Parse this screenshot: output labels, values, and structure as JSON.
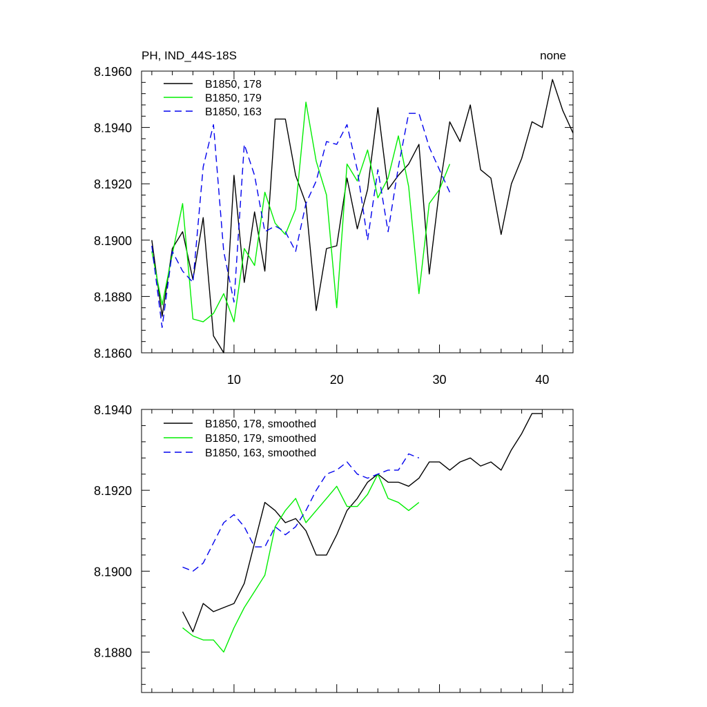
{
  "chart_data": [
    {
      "type": "line",
      "title": "PH, IND_44S-18S",
      "right_title": "none",
      "xlim": [
        1,
        43
      ],
      "ylim": [
        8.186,
        8.196
      ],
      "x_ticks": [
        10,
        20,
        30,
        40
      ],
      "x_tick_labels": [
        "10",
        "20",
        "30",
        "40"
      ],
      "y_ticks": [
        8.186,
        8.188,
        8.19,
        8.192,
        8.194,
        8.196
      ],
      "y_tick_labels": [
        "8.1860",
        "8.1880",
        "8.1900",
        "8.1920",
        "8.1940",
        "8.1960"
      ],
      "legend_position": "top-left",
      "series": [
        {
          "name": "B1850, 178",
          "color": "#000000",
          "dash": "solid",
          "x": [
            2,
            3,
            4,
            5,
            6,
            7,
            8,
            9,
            10,
            11,
            12,
            13,
            14,
            15,
            16,
            17,
            18,
            19,
            20,
            21,
            22,
            23,
            24,
            25,
            26,
            27,
            28,
            29,
            30,
            31,
            32,
            33,
            34,
            35,
            36,
            37,
            38,
            39,
            40,
            41,
            42,
            43
          ],
          "values": [
            8.19,
            8.1873,
            8.1897,
            8.1903,
            8.1886,
            8.1908,
            8.1866,
            8.186,
            8.1923,
            8.1885,
            8.191,
            8.1889,
            8.1943,
            8.1943,
            8.1923,
            8.1913,
            8.1875,
            8.1897,
            8.1898,
            8.1922,
            8.1904,
            8.1918,
            8.1947,
            8.1918,
            8.1923,
            8.1927,
            8.1934,
            8.1888,
            8.1918,
            8.1942,
            8.1935,
            8.1948,
            8.1925,
            8.1922,
            8.1902,
            8.192,
            8.1929,
            8.1942,
            8.194,
            8.1957,
            8.1946,
            8.1938
          ]
        },
        {
          "name": "B1850, 179",
          "color": "#00ee00",
          "dash": "solid",
          "x": [
            2,
            3,
            4,
            5,
            6,
            7,
            8,
            9,
            10,
            11,
            12,
            13,
            14,
            15,
            16,
            17,
            18,
            19,
            20,
            21,
            22,
            23,
            24,
            25,
            26,
            27,
            28,
            29,
            30,
            31
          ],
          "values": [
            8.1896,
            8.1877,
            8.1895,
            8.1913,
            8.1872,
            8.1871,
            8.1874,
            8.1881,
            8.1871,
            8.1897,
            8.1891,
            8.1917,
            8.1906,
            8.1902,
            8.1911,
            8.1949,
            8.1928,
            8.1916,
            8.1876,
            8.1927,
            8.1921,
            8.1932,
            8.1915,
            8.1922,
            8.1937,
            8.1919,
            8.1881,
            8.1913,
            8.1918,
            8.1927
          ]
        },
        {
          "name": "B1850, 163",
          "color": "#0000ee",
          "dash": "dashed",
          "x": [
            2,
            3,
            4,
            5,
            6,
            7,
            8,
            9,
            10,
            11,
            12,
            13,
            14,
            15,
            16,
            17,
            18,
            19,
            20,
            21,
            22,
            23,
            24,
            25,
            26,
            27,
            28,
            29,
            30,
            31
          ],
          "values": [
            8.1898,
            8.1869,
            8.1896,
            8.1889,
            8.1885,
            8.1926,
            8.1941,
            8.1896,
            8.1878,
            8.1934,
            8.1923,
            8.1903,
            8.1905,
            8.1903,
            8.1896,
            8.1913,
            8.1921,
            8.1935,
            8.1934,
            8.1941,
            8.1925,
            8.19,
            8.1925,
            8.1903,
            8.1926,
            8.1945,
            8.1945,
            8.1933,
            8.1925,
            8.1917
          ]
        }
      ]
    },
    {
      "type": "line",
      "xlim": [
        1,
        43
      ],
      "ylim": [
        8.187,
        8.194
      ],
      "x_ticks": [
        10,
        20,
        30,
        40
      ],
      "y_ticks": [
        8.188,
        8.19,
        8.192,
        8.194
      ],
      "y_tick_labels": [
        "8.1880",
        "8.1900",
        "8.1920",
        "8.1940"
      ],
      "legend_position": "top-left",
      "series": [
        {
          "name": "B1850, 178, smoothed",
          "color": "#000000",
          "dash": "solid",
          "x": [
            5,
            6,
            7,
            8,
            9,
            10,
            11,
            12,
            13,
            14,
            15,
            16,
            17,
            18,
            19,
            20,
            21,
            22,
            23,
            24,
            25,
            26,
            27,
            28,
            29,
            30,
            31,
            32,
            33,
            34,
            35,
            36,
            37,
            38,
            39,
            40
          ],
          "values": [
            8.189,
            8.1885,
            8.1892,
            8.189,
            8.1891,
            8.1892,
            8.1897,
            8.1907,
            8.1917,
            8.1915,
            8.1912,
            8.1913,
            8.191,
            8.1904,
            8.1904,
            8.1909,
            8.1915,
            8.1918,
            8.1922,
            8.1924,
            8.1922,
            8.1922,
            8.1921,
            8.1923,
            8.1927,
            8.1927,
            8.1925,
            8.1927,
            8.1928,
            8.1926,
            8.1927,
            8.1925,
            8.193,
            8.1934,
            8.1939,
            8.1939
          ]
        },
        {
          "name": "B1850, 179, smoothed",
          "color": "#00ee00",
          "dash": "solid",
          "x": [
            5,
            6,
            7,
            8,
            9,
            10,
            11,
            12,
            13,
            14,
            15,
            16,
            17,
            18,
            19,
            20,
            21,
            22,
            23,
            24,
            25,
            26,
            27,
            28
          ],
          "values": [
            8.1886,
            8.1884,
            8.1883,
            8.1883,
            8.188,
            8.1886,
            8.1891,
            8.1895,
            8.1899,
            8.1911,
            8.1915,
            8.1918,
            8.1912,
            8.1915,
            8.1918,
            8.1921,
            8.1916,
            8.1916,
            8.1919,
            8.1924,
            8.1918,
            8.1917,
            8.1915,
            8.1917
          ]
        },
        {
          "name": "B1850, 163, smoothed",
          "color": "#0000ee",
          "dash": "dashed",
          "x": [
            5,
            6,
            7,
            8,
            9,
            10,
            11,
            12,
            13,
            14,
            15,
            16,
            17,
            18,
            19,
            20,
            21,
            22,
            23,
            24,
            25,
            26,
            27,
            28
          ],
          "values": [
            8.1901,
            8.19,
            8.1902,
            8.1907,
            8.1912,
            8.1914,
            8.1911,
            8.1906,
            8.1906,
            8.1911,
            8.1909,
            8.1911,
            8.1915,
            8.192,
            8.1924,
            8.1925,
            8.1927,
            8.1924,
            8.1923,
            8.1924,
            8.1925,
            8.1925,
            8.1929,
            8.1928
          ]
        }
      ]
    }
  ]
}
